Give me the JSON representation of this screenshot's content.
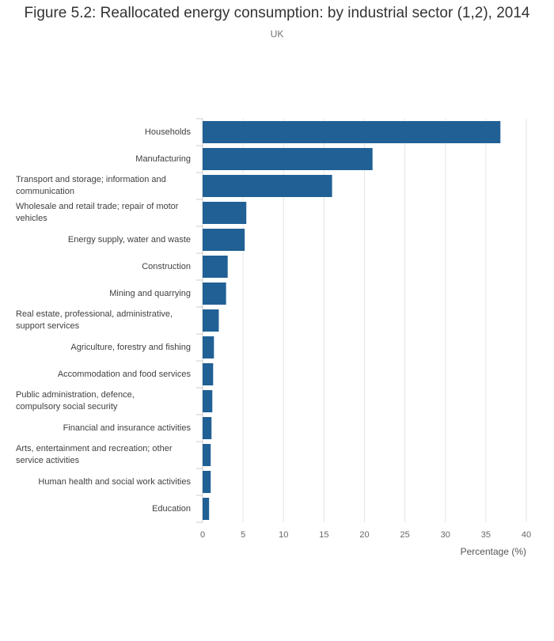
{
  "chart_data": {
    "type": "bar",
    "orientation": "horizontal",
    "title": "Figure 5.2: Reallocated energy consumption: by industrial sector (1,2), 2014",
    "subtitle": "UK",
    "xlabel": "Percentage (%)",
    "ylabel": "",
    "xlim": [
      0,
      40
    ],
    "xticks": [
      0,
      5,
      10,
      15,
      20,
      25,
      30,
      35,
      40
    ],
    "grid": true,
    "bar_color": "#206095",
    "categories": [
      "Households",
      "Manufacturing",
      "Transport and storage; information and communication",
      "Wholesale and retail trade; repair of motor vehicles",
      "Energy supply, water and waste",
      "Construction",
      "Mining and quarrying",
      "Real estate, professional, administrative, support services",
      "Agriculture, forestry and fishing",
      "Accommodation and food services",
      "Public administration, defence, compulsory social security",
      "Financial and insurance activities",
      "Arts, entertainment and recreation; other service activities",
      "Human health and social work activities",
      "Education"
    ],
    "label_lines": [
      [
        "Households"
      ],
      [
        "Manufacturing"
      ],
      [
        "Transport and storage; information and",
        "communication"
      ],
      [
        "Wholesale and retail trade; repair of motor",
        "vehicles"
      ],
      [
        "Energy supply, water and waste"
      ],
      [
        "Construction"
      ],
      [
        "Mining and quarrying"
      ],
      [
        "Real estate, professional, administrative,",
        "support services"
      ],
      [
        "Agriculture, forestry and fishing"
      ],
      [
        "Accommodation and food services"
      ],
      [
        "Public administration, defence,",
        "compulsory social security"
      ],
      [
        "Financial and insurance activities"
      ],
      [
        "Arts, entertainment and recreation; other",
        "service activities"
      ],
      [
        "Human health and social work activities"
      ],
      [
        "Education"
      ]
    ],
    "values": [
      36.8,
      21.0,
      16.0,
      5.4,
      5.2,
      3.1,
      2.9,
      2.0,
      1.4,
      1.3,
      1.2,
      1.1,
      1.0,
      1.0,
      0.8
    ]
  }
}
